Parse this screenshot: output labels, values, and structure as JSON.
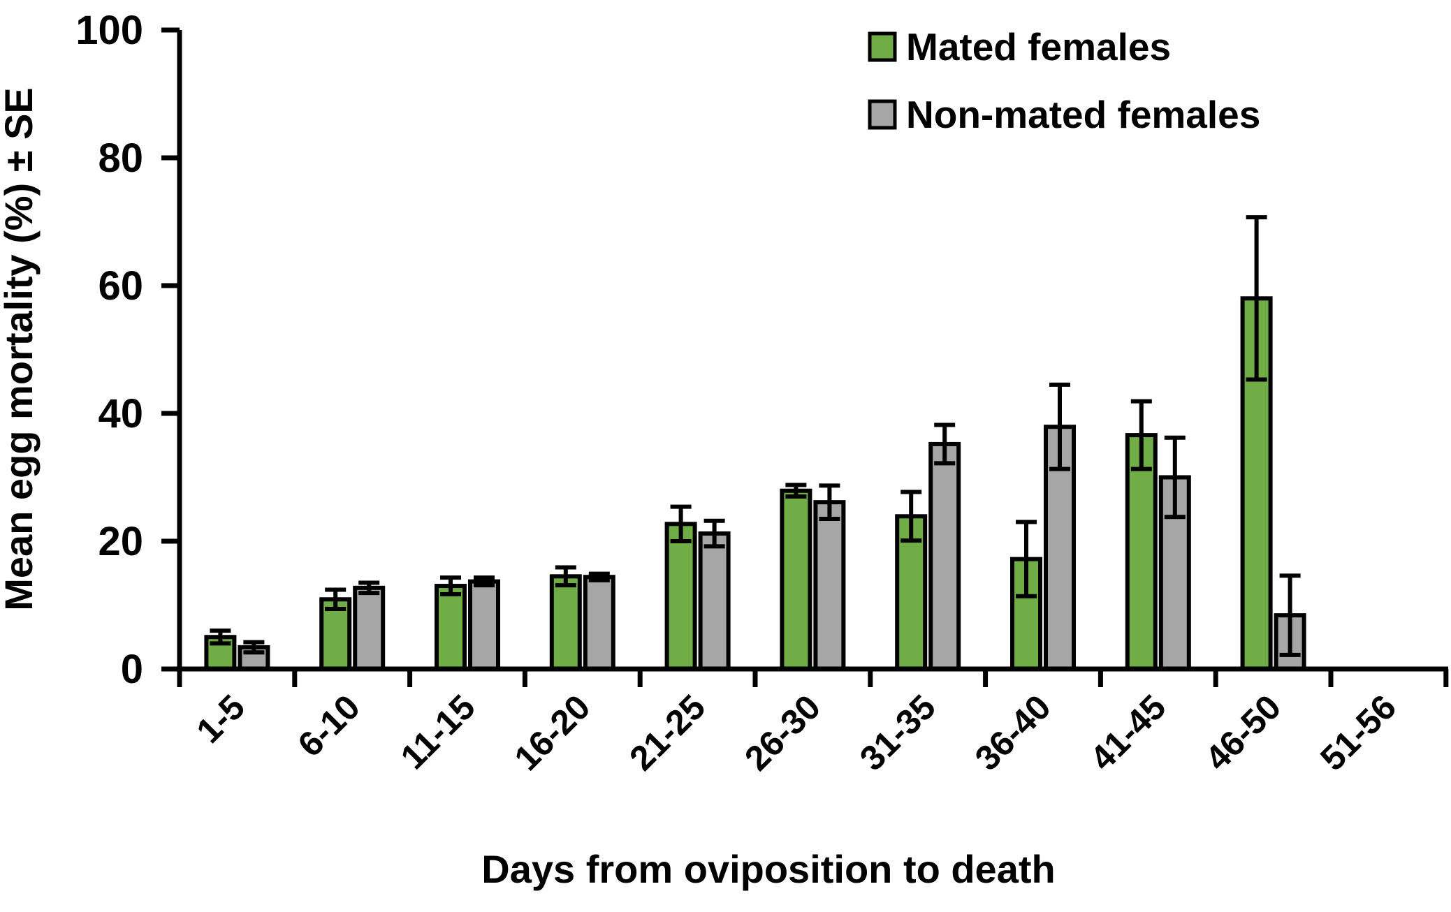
{
  "chart_data": {
    "type": "bar",
    "categories": [
      "1-5",
      "6-10",
      "11-15",
      "16-20",
      "21-25",
      "26-30",
      "31-35",
      "36-40",
      "41-45",
      "46-50",
      "51-56"
    ],
    "series": [
      {
        "name": "Mated females",
        "color": "#70AD47",
        "values": [
          5.0,
          10.9,
          13.0,
          14.5,
          22.7,
          27.9,
          23.9,
          17.2,
          36.6,
          58.0,
          null
        ],
        "se": [
          1.0,
          1.5,
          1.3,
          1.4,
          2.7,
          0.9,
          3.8,
          5.8,
          5.3,
          12.7,
          null
        ]
      },
      {
        "name": "Non-mated females",
        "color": "#A6A6A6",
        "values": [
          3.4,
          12.7,
          13.7,
          14.4,
          21.2,
          26.1,
          35.2,
          37.9,
          30.0,
          8.4,
          null
        ],
        "se": [
          0.8,
          0.8,
          0.6,
          0.5,
          2.0,
          2.6,
          3.0,
          6.6,
          6.2,
          6.2,
          null
        ]
      }
    ],
    "xlabel": "Days from oviposition to death",
    "ylabel": "Mean egg mortality (%) ± SE",
    "ylim": [
      0,
      100
    ],
    "yticks": [
      0,
      20,
      40,
      60,
      80,
      100
    ],
    "grid": false,
    "error_bars": true,
    "legend_position": "top-right",
    "axis_color": "#000000",
    "background_color": "#ffffff"
  }
}
